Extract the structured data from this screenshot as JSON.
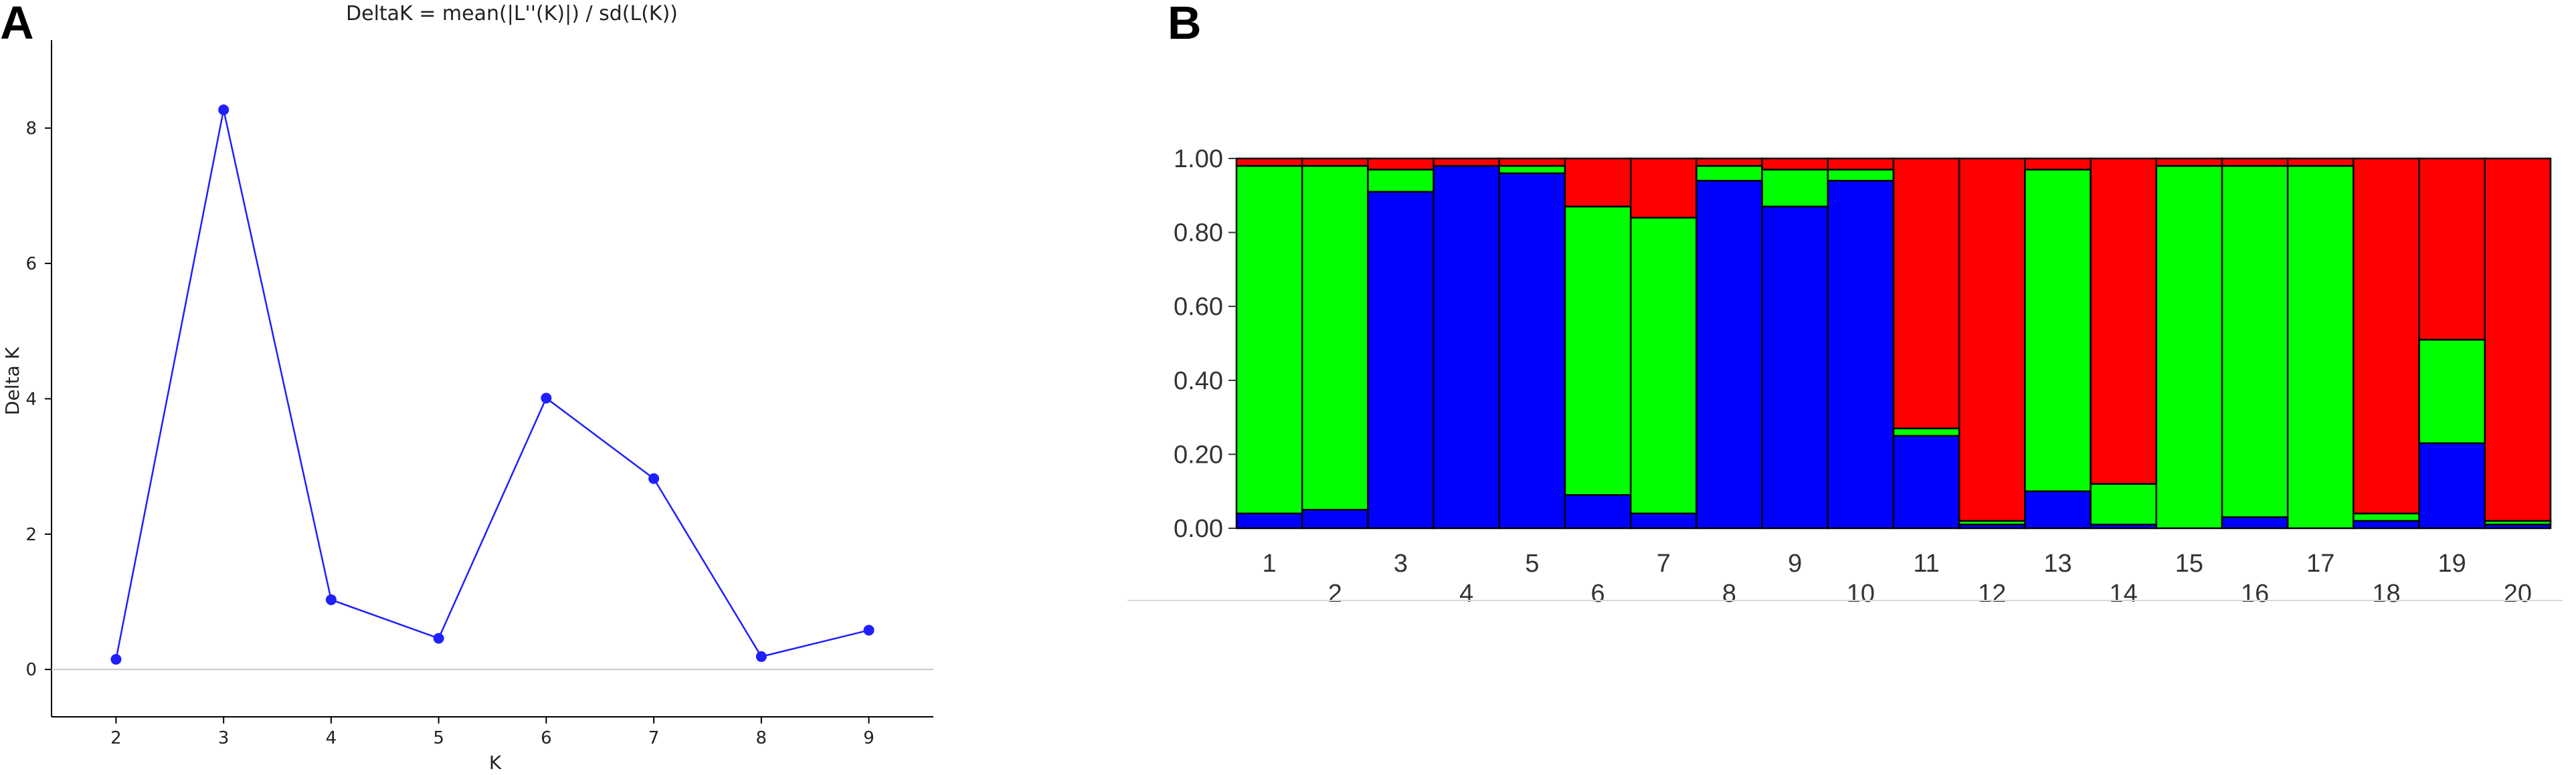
{
  "panels": {
    "a_letter": "A",
    "b_letter": "B"
  },
  "chart_data": [
    {
      "type": "line",
      "title": "DeltaK = mean(|L''(K)|) / sd(L(K))",
      "xlabel": "K",
      "ylabel": "Delta K",
      "x": [
        2,
        3,
        4,
        5,
        6,
        7,
        8,
        9
      ],
      "xticks": [
        "2",
        "3",
        "4",
        "5",
        "6",
        "7",
        "8",
        "9"
      ],
      "xlim": [
        1.4,
        9.6
      ],
      "yticks": [
        "0",
        "2",
        "4",
        "6",
        "8"
      ],
      "ylim": [
        -0.7,
        9.3
      ],
      "series": [
        {
          "values": [
            0.15,
            8.27,
            1.03,
            0.46,
            4.01,
            2.82,
            0.19,
            0.58
          ]
        }
      ],
      "grid": false,
      "zero_line": true,
      "color": "#1f1fff"
    },
    {
      "type": "bar",
      "stacked": true,
      "categories": [
        "1",
        "2",
        "3",
        "4",
        "5",
        "6",
        "7",
        "8",
        "9",
        "10",
        "11",
        "12",
        "13",
        "14",
        "15",
        "16",
        "17",
        "18",
        "19",
        "20"
      ],
      "yticks": [
        "0.00",
        "0.20",
        "0.40",
        "0.60",
        "0.80",
        "1.00"
      ],
      "ylim": [
        0,
        1
      ],
      "series": [
        {
          "color": "#0000ff",
          "values": [
            0.04,
            0.05,
            0.91,
            0.98,
            0.96,
            0.09,
            0.04,
            0.94,
            0.87,
            0.94,
            0.25,
            0.01,
            0.1,
            0.01,
            0.0,
            0.03,
            0.0,
            0.02,
            0.23,
            0.01
          ]
        },
        {
          "color": "#00ff00",
          "values": [
            0.94,
            0.93,
            0.06,
            0.0,
            0.02,
            0.78,
            0.8,
            0.04,
            0.1,
            0.03,
            0.02,
            0.01,
            0.87,
            0.11,
            0.98,
            0.95,
            0.98,
            0.02,
            0.28,
            0.01
          ]
        },
        {
          "color": "#ff0000",
          "values": [
            0.02,
            0.02,
            0.03,
            0.02,
            0.02,
            0.13,
            0.16,
            0.02,
            0.03,
            0.03,
            0.73,
            0.98,
            0.03,
            0.88,
            0.02,
            0.02,
            0.02,
            0.96,
            0.49,
            0.98
          ]
        }
      ]
    }
  ]
}
